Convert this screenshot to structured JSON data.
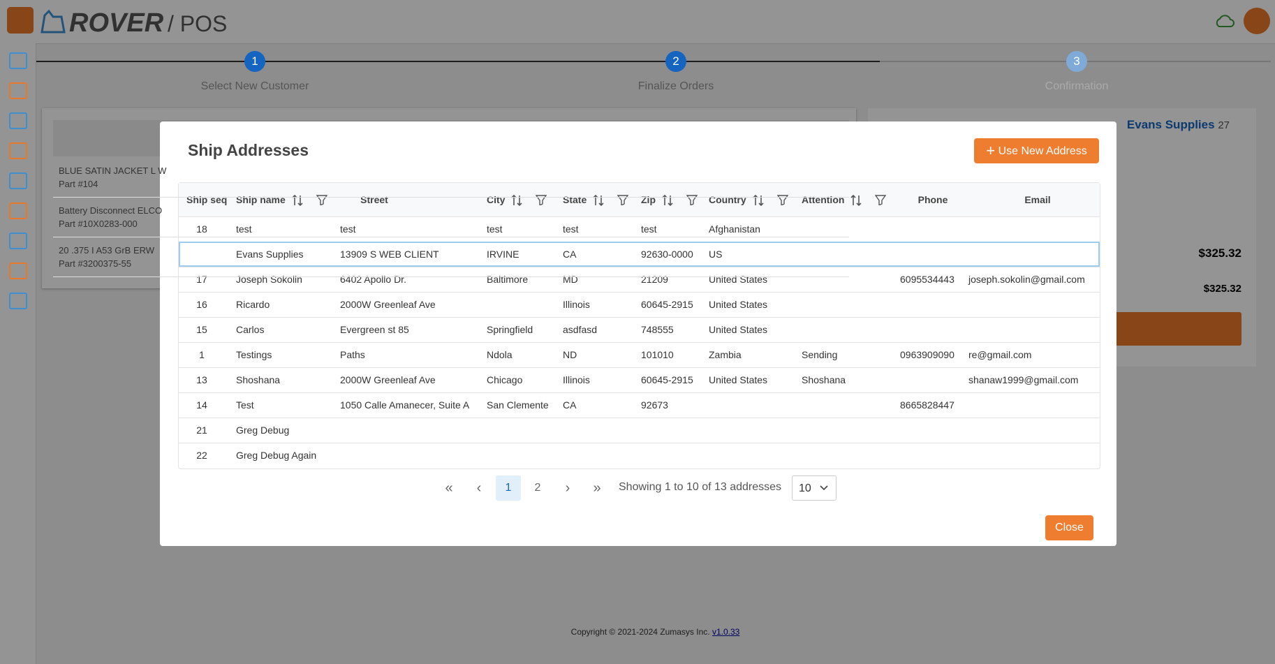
{
  "header": {
    "logo": "ROVER",
    "section": "/ POS"
  },
  "steps": [
    {
      "number": "1",
      "label": "Select New Customer"
    },
    {
      "number": "2",
      "label": "Finalize Orders"
    },
    {
      "number": "3",
      "label": "Confirmation"
    }
  ],
  "background": {
    "items": [
      {
        "name": "BLUE SATIN JACKET L W",
        "part": "Part #104"
      },
      {
        "name": "Battery Disconnect ELCO",
        "part": "Part #10X0283-000"
      },
      {
        "name": "20 .375 I A53 GrB ERW",
        "part": "Part #3200375-55"
      }
    ],
    "customer": "Evans Supplies",
    "customer_id": "27",
    "amounts": [
      "$325.32",
      "$325.32"
    ]
  },
  "modal": {
    "title": "Ship Addresses",
    "new_button": "Use New Address",
    "columns": [
      {
        "label": "Ship seq",
        "sortable": false,
        "filterable": false
      },
      {
        "label": "Ship name",
        "sortable": true,
        "filterable": true
      },
      {
        "label": "Street",
        "sortable": false,
        "filterable": false
      },
      {
        "label": "City",
        "sortable": true,
        "filterable": true
      },
      {
        "label": "State",
        "sortable": true,
        "filterable": true
      },
      {
        "label": "Zip",
        "sortable": true,
        "filterable": true
      },
      {
        "label": "Country",
        "sortable": true,
        "filterable": true
      },
      {
        "label": "Attention",
        "sortable": true,
        "filterable": true
      },
      {
        "label": "Phone",
        "sortable": false,
        "filterable": false
      },
      {
        "label": "Email",
        "sortable": false,
        "filterable": false
      }
    ],
    "rows": [
      [
        "18",
        "test",
        "test",
        "test",
        "test",
        "test",
        "Afghanistan",
        null,
        null,
        null
      ],
      [
        null,
        "Evans Supplies",
        "13909 S WEB CLIENT",
        "IRVINE",
        "CA",
        "92630-0000",
        "US",
        null,
        null,
        null
      ],
      [
        "17",
        "Joseph Sokolin",
        "6402 Apollo Dr.",
        "Baltimore",
        "MD",
        "21209",
        "United States",
        null,
        "6095534443",
        "joseph.sokolin@gmail.com"
      ],
      [
        "16",
        "Ricardo",
        "2000W Greenleaf Ave",
        null,
        "Illinois",
        "60645-2915",
        "United States",
        null,
        null,
        null
      ],
      [
        "15",
        "Carlos",
        "Evergreen st 85",
        "Springfield",
        "asdfasd",
        "748555",
        "United States",
        null,
        null,
        null
      ],
      [
        "1",
        "Testings",
        "Paths",
        "Ndola",
        "ND",
        "101010",
        "Zambia",
        "Sending",
        "0963909090",
        "re@gmail.com"
      ],
      [
        "13",
        "Shoshana",
        "2000W Greenleaf Ave",
        "Chicago",
        "Illinois",
        "60645-2915",
        "United States",
        "Shoshana",
        null,
        "shanaw1999@gmail.com"
      ],
      [
        "14",
        "Test",
        "1050 Calle Amanecer, Suite A",
        "San Clemente",
        "CA",
        "92673",
        null,
        null,
        "8665828447",
        null
      ],
      [
        "21",
        "Greg Debug",
        null,
        null,
        null,
        null,
        null,
        null,
        null,
        null
      ],
      [
        "22",
        "Greg Debug Again",
        null,
        null,
        null,
        null,
        null,
        null,
        null,
        null
      ]
    ],
    "selected_row": 1,
    "pagination": {
      "first": "«",
      "prev": "‹",
      "pages": [
        "1",
        "2"
      ],
      "current": 0,
      "next": "›",
      "last": "»",
      "summary": "Showing 1 to 10 of 13 addresses",
      "page_size": "10"
    },
    "close_button": "Close"
  },
  "footer": {
    "copyright": "Copyright © 2021-2024 Zumasys Inc.",
    "version": "v1.0.33"
  }
}
